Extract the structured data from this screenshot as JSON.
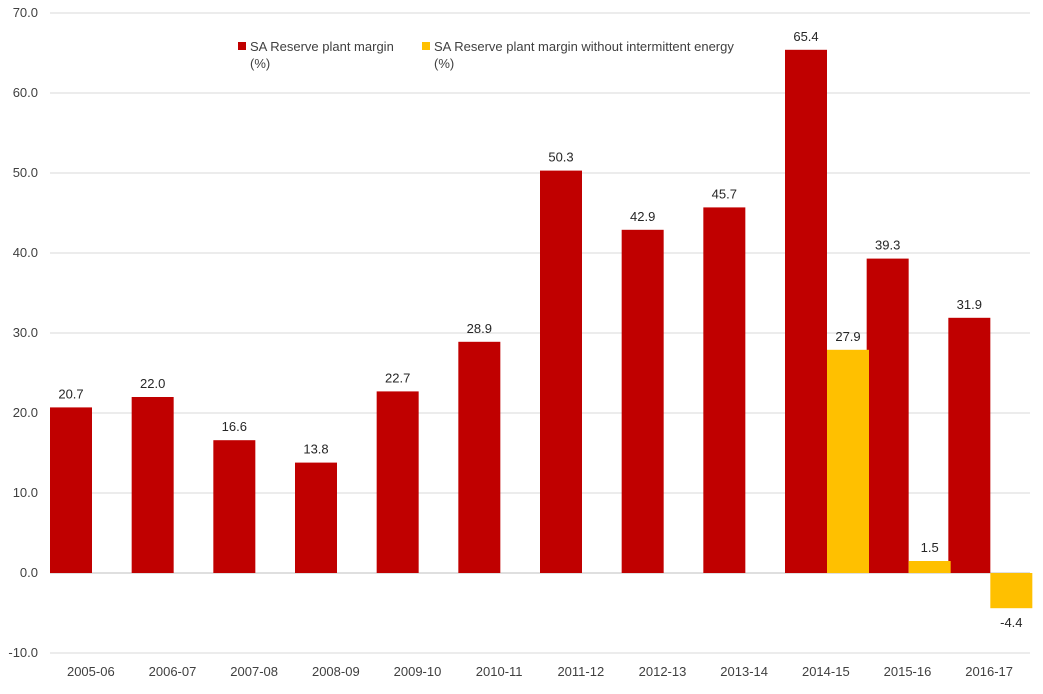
{
  "chart_data": {
    "type": "bar",
    "title": "",
    "xlabel": "",
    "ylabel": "",
    "ylim": [
      -10,
      70
    ],
    "ytick_step": 10,
    "ytick_labels": [
      "-10.0",
      "0.0",
      "10.0",
      "20.0",
      "30.0",
      "40.0",
      "50.0",
      "60.0",
      "70.0"
    ],
    "grid": true,
    "legend_position": "top-center",
    "categories": [
      "2005-06",
      "2006-07",
      "2007-08",
      "2008-09",
      "2009-10",
      "2010-11",
      "2011-12",
      "2012-13",
      "2013-14",
      "2014-15",
      "2015-16",
      "2016-17"
    ],
    "series": [
      {
        "name": "SA Reserve plant margin (%)",
        "legend_lines": [
          "SA Reserve plant margin",
          "(%)"
        ],
        "color": "#C00000",
        "values": [
          20.7,
          22.0,
          16.6,
          13.8,
          22.7,
          28.9,
          50.3,
          42.9,
          45.7,
          65.4,
          39.3,
          31.9
        ],
        "labels": [
          "20.7",
          "22.0",
          "16.6",
          "13.8",
          "22.7",
          "28.9",
          "50.3",
          "42.9",
          "45.7",
          "65.4",
          "39.3",
          "31.9"
        ]
      },
      {
        "name": "SA Reserve plant margin without intermittent energy (%)",
        "legend_lines": [
          "SA Reserve plant margin without intermittent energy",
          "(%)"
        ],
        "color": "#FFC000",
        "values": [
          null,
          null,
          null,
          null,
          null,
          null,
          null,
          null,
          null,
          27.9,
          1.5,
          -4.4
        ],
        "labels": [
          "",
          "",
          "",
          "",
          "",
          "",
          "",
          "",
          "",
          "27.9",
          "1.5",
          "-4.4"
        ]
      }
    ]
  }
}
